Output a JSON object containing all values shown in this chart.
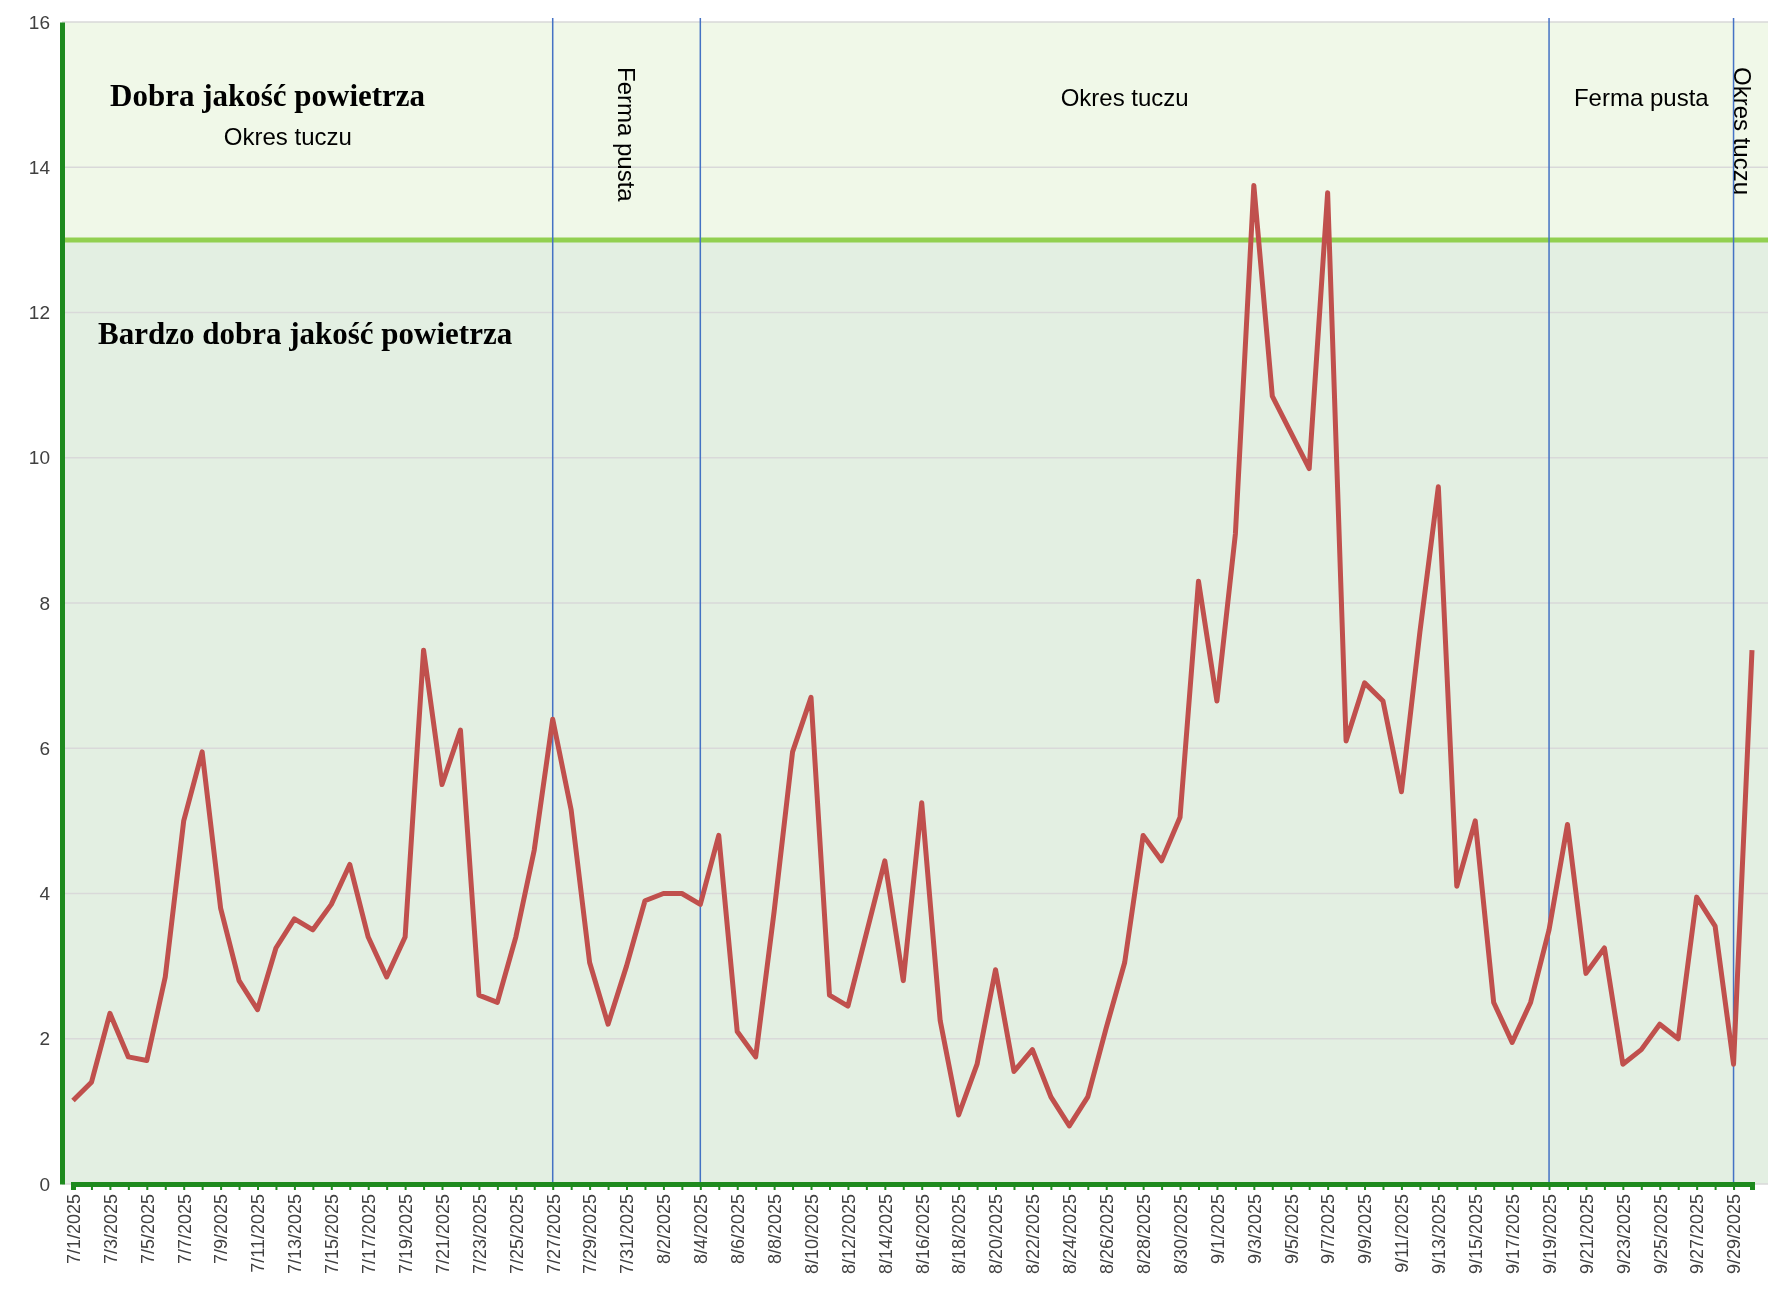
{
  "chart_data": {
    "type": "line",
    "categories": [
      "7/1/2025",
      null,
      "7/3/2025",
      null,
      "7/5/2025",
      null,
      "7/7/2025",
      null,
      "7/9/2025",
      null,
      "7/11/2025",
      null,
      "7/13/2025",
      null,
      "7/15/2025",
      null,
      "7/17/2025",
      null,
      "7/19/2025",
      null,
      "7/21/2025",
      null,
      "7/23/2025",
      null,
      "7/25/2025",
      null,
      "7/27/2025",
      null,
      "7/29/2025",
      null,
      "7/31/2025",
      null,
      "8/2/2025",
      null,
      "8/4/2025",
      null,
      "8/6/2025",
      null,
      "8/8/2025",
      null,
      "8/10/2025",
      null,
      "8/12/2025",
      null,
      "8/14/2025",
      null,
      "8/16/2025",
      null,
      "8/18/2025",
      null,
      "8/20/2025",
      null,
      "8/22/2025",
      null,
      "8/24/2025",
      null,
      "8/26/2025",
      null,
      "8/28/2025",
      null,
      "8/30/2025",
      null,
      "9/1/2025",
      null,
      "9/3/2025",
      null,
      "9/5/2025",
      null,
      "9/7/2025",
      null,
      "9/9/2025",
      null,
      "9/11/2025",
      null,
      "9/13/2025",
      null,
      "9/15/2025",
      null,
      "9/17/2025",
      null,
      "9/19/2025",
      null,
      "9/21/2025",
      null,
      "9/23/2025",
      null,
      "9/25/2025",
      null,
      "9/27/2025",
      null,
      "9/29/2025",
      null
    ],
    "series": [
      {
        "color": "#c0504d",
        "values": [
          1.15,
          1.4,
          2.35,
          1.75,
          1.7,
          2.85,
          5.0,
          5.95,
          3.8,
          2.8,
          2.4,
          3.25,
          3.65,
          3.5,
          3.85,
          4.4,
          3.4,
          2.85,
          3.4,
          7.35,
          5.5,
          6.25,
          2.6,
          2.5,
          3.4,
          4.6,
          6.4,
          5.15,
          3.05,
          2.2,
          3.0,
          3.9,
          4.0,
          4.0,
          3.85,
          4.8,
          2.1,
          1.75,
          3.75,
          5.95,
          6.7,
          2.6,
          2.45,
          3.45,
          4.45,
          2.8,
          5.25,
          2.25,
          0.95,
          1.65,
          2.95,
          1.55,
          1.85,
          1.2,
          0.8,
          1.2,
          2.15,
          3.05,
          4.8,
          4.45,
          5.05,
          8.3,
          6.65,
          8.95,
          13.75,
          10.85,
          10.35,
          9.85,
          13.65,
          6.1,
          6.9,
          6.65,
          5.4,
          7.6,
          9.6,
          4.1,
          5.0,
          2.5,
          1.95,
          2.5,
          3.5,
          4.95,
          2.9,
          3.25,
          1.65,
          1.85,
          2.2,
          2.0,
          3.95,
          3.55,
          1.65,
          7.35
        ]
      }
    ],
    "ylim": [
      0,
      16
    ],
    "yticks": [
      0,
      2,
      4,
      6,
      8,
      10,
      12,
      14,
      16
    ],
    "grid": "y",
    "marker": "none",
    "line_style": "solid",
    "annotations": [
      "Okres tuczu",
      "Ferma pusta",
      "Okres tuczu",
      "Ferma pusta",
      "Okres tuczu"
    ],
    "bands": [
      {
        "axis": "y",
        "from": 13,
        "to": 16,
        "label": "Dobra jakość powietrza",
        "color": "#f0f8e8"
      },
      {
        "axis": "y",
        "from": 0,
        "to": 13,
        "label": "Bardzo dobra jakość powietrza",
        "color": "#e3efe2"
      }
    ],
    "ref_lines": [
      {
        "axis": "y",
        "value": 13,
        "color": "#92d050"
      },
      {
        "axis": "x",
        "value": "7/27/2025",
        "color": "#4472c4"
      },
      {
        "axis": "x",
        "value": "8/4/2025",
        "color": "#4472c4"
      },
      {
        "axis": "x",
        "value": "9/19/2025",
        "color": "#4472c4"
      },
      {
        "axis": "x",
        "value": "9/29/2025",
        "color": "#4472c4"
      }
    ]
  }
}
